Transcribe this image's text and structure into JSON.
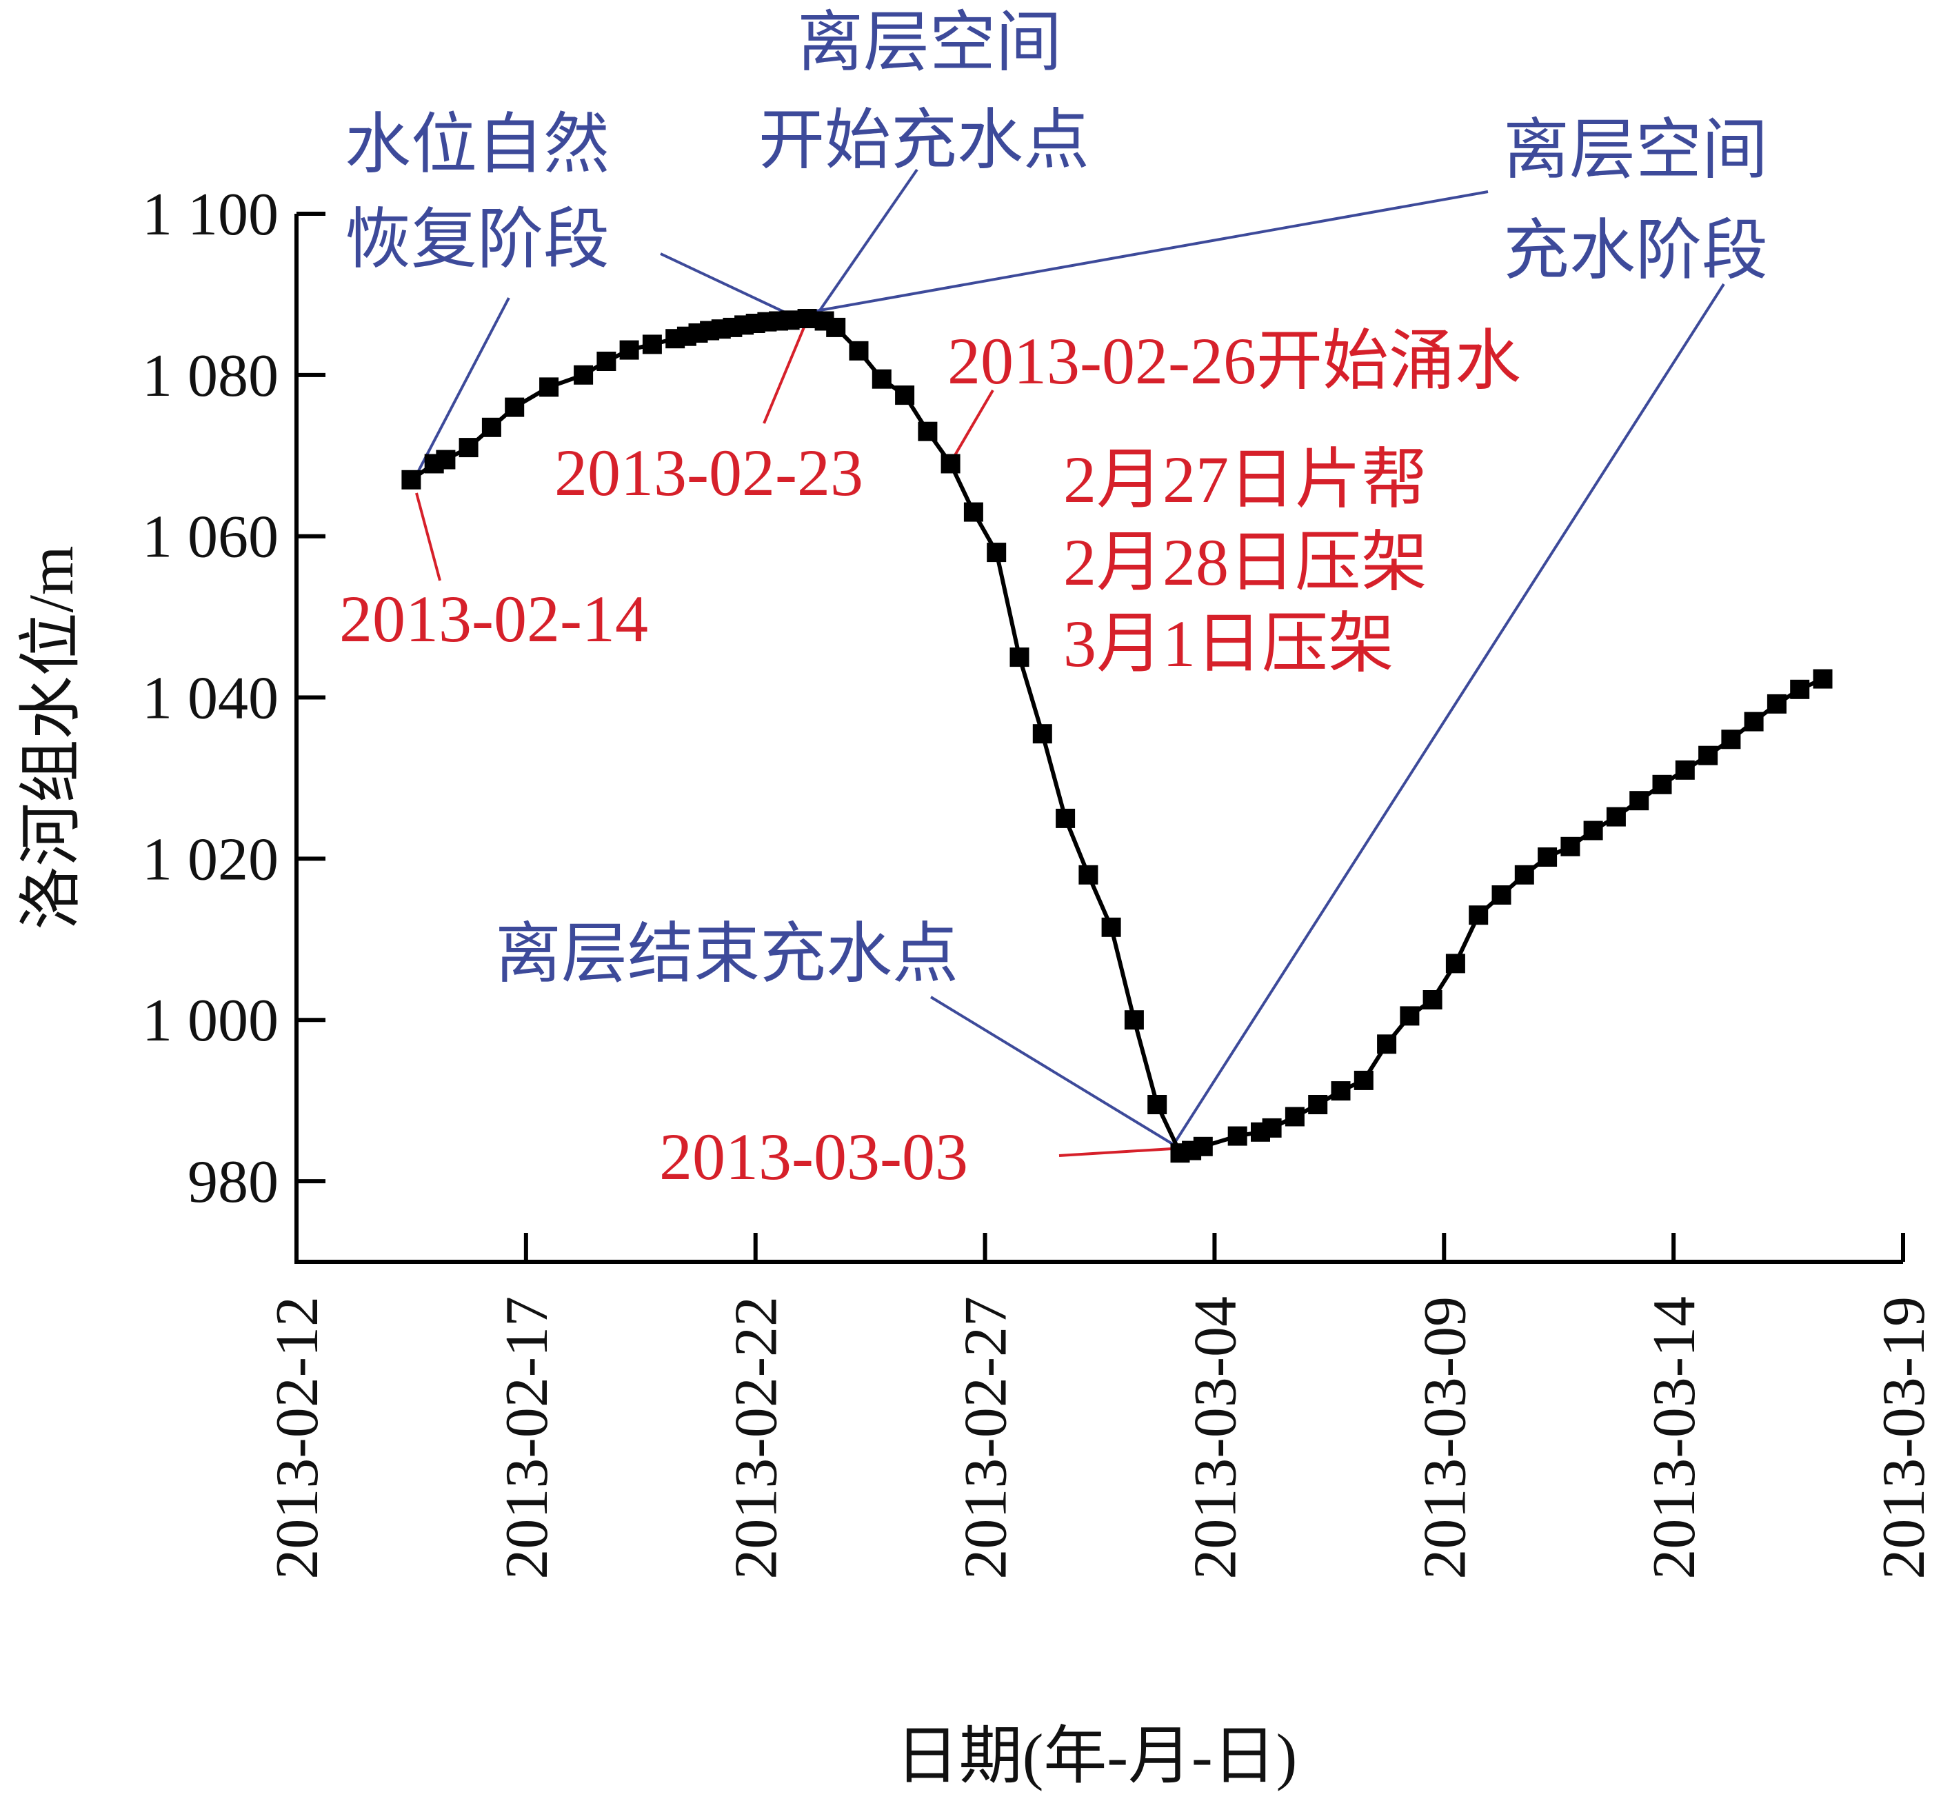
{
  "chart_data": {
    "type": "line",
    "xlabel": "日期(年-月-日)",
    "ylabel": "洛河组水位/m",
    "ylim": [
      970,
      1100
    ],
    "yticks": [
      980,
      1000,
      1020,
      1040,
      1060,
      1080,
      1100
    ],
    "ytick_labels": [
      "980",
      "1 000",
      "1 020",
      "1 040",
      "1 060",
      "1 080",
      "1 100"
    ],
    "xlim": [
      "2013-02-12",
      "2013-03-19"
    ],
    "xticks": [
      "2013-02-12",
      "2013-02-17",
      "2013-02-22",
      "2013-02-27",
      "2013-03-04",
      "2013-03-09",
      "2013-03-14",
      "2013-03-19"
    ],
    "grid": false,
    "legend": "none",
    "line_color": "#000000",
    "marker": "square",
    "series": [
      {
        "x": [
          "2013-02-14 12:00",
          "2013-02-15 00:00",
          "2013-02-15 06:00",
          "2013-02-15 18:00",
          "2013-02-16 06:00",
          "2013-02-16 18:00",
          "2013-02-17 12:00",
          "2013-02-18 06:00",
          "2013-02-18 18:00",
          "2013-02-19 06:00",
          "2013-02-19 18:00",
          "2013-02-20 06:00",
          "2013-02-20 12:00",
          "2013-02-20 18:00",
          "2013-02-21 00:00",
          "2013-02-21 06:00",
          "2013-02-21 12:00",
          "2013-02-21 18:00",
          "2013-02-22 00:00",
          "2013-02-22 06:00",
          "2013-02-22 12:00",
          "2013-02-22 18:00",
          "2013-02-23 03:00",
          "2013-02-23 12:00",
          "2013-02-23 18:00",
          "2013-02-24 06:00",
          "2013-02-24 18:00",
          "2013-02-25 06:00",
          "2013-02-25 18:00",
          "2013-02-26 06:00",
          "2013-02-26 18:00",
          "2013-02-27 06:00",
          "2013-02-27 18:00",
          "2013-02-28 06:00",
          "2013-02-28 18:00",
          "2013-03-01 06:00",
          "2013-03-01 18:00",
          "2013-03-02 06:00",
          "2013-03-02 18:00",
          "2013-03-03 06:00",
          "2013-03-03 12:00",
          "2013-03-03 18:00",
          "2013-03-04 12:00",
          "2013-03-05 00:00",
          "2013-03-05 06:00",
          "2013-03-05 18:00",
          "2013-03-06 06:00",
          "2013-03-06 18:00",
          "2013-03-07 06:00",
          "2013-03-07 18:00",
          "2013-03-08 06:00",
          "2013-03-08 18:00",
          "2013-03-09 06:00",
          "2013-03-09 18:00",
          "2013-03-10 06:00",
          "2013-03-10 18:00",
          "2013-03-11 06:00",
          "2013-03-11 18:00",
          "2013-03-12 06:00",
          "2013-03-12 18:00",
          "2013-03-13 06:00",
          "2013-03-13 18:00",
          "2013-03-14 06:00",
          "2013-03-14 18:00",
          "2013-03-15 06:00",
          "2013-03-15 18:00",
          "2013-03-16 06:00",
          "2013-03-16 18:00",
          "2013-03-17 06:00"
        ],
        "values": [
          1067,
          1069,
          1069.5,
          1071,
          1073.5,
          1076,
          1078.5,
          1080,
          1081.7,
          1083.1,
          1083.8,
          1084.5,
          1084.8,
          1085.2,
          1085.5,
          1085.7,
          1085.9,
          1086.2,
          1086.4,
          1086.6,
          1086.7,
          1086.8,
          1087,
          1086.7,
          1085.9,
          1083,
          1079.5,
          1077.5,
          1073,
          1069,
          1063,
          1058,
          1045,
          1035.5,
          1025,
          1018,
          1011.5,
          1000,
          989.5,
          983.5,
          983.8,
          984.3,
          985.6,
          986.1,
          986.6,
          988,
          989.5,
          991.2,
          992.5,
          997,
          1000.5,
          1002.5,
          1007,
          1013,
          1015.5,
          1018,
          1020.2,
          1021.5,
          1023.5,
          1025.2,
          1027.2,
          1029.2,
          1031,
          1032.8,
          1034.8,
          1037,
          1039.2,
          1041,
          1042.3
        ]
      }
    ]
  },
  "annotations": {
    "blue": {
      "natural_recovery": [
        "水位自然",
        "恢复阶段"
      ],
      "fill_start": [
        "离层空间",
        "开始充水点"
      ],
      "fill_stage": [
        "离层空间",
        "充水阶段"
      ],
      "fill_end": "离层结束充水点"
    },
    "red": {
      "d0214": "2013-02-14",
      "d0223": "2013-02-23",
      "d0226": "2013-02-26开始涌水",
      "events": [
        "2月27日片帮",
        "2月28日压架",
        "3月1日压架"
      ],
      "d0303": "2013-03-03"
    },
    "colors": {
      "blue": "#3d4a9a",
      "red": "#d6202a",
      "line": "#000000"
    }
  }
}
